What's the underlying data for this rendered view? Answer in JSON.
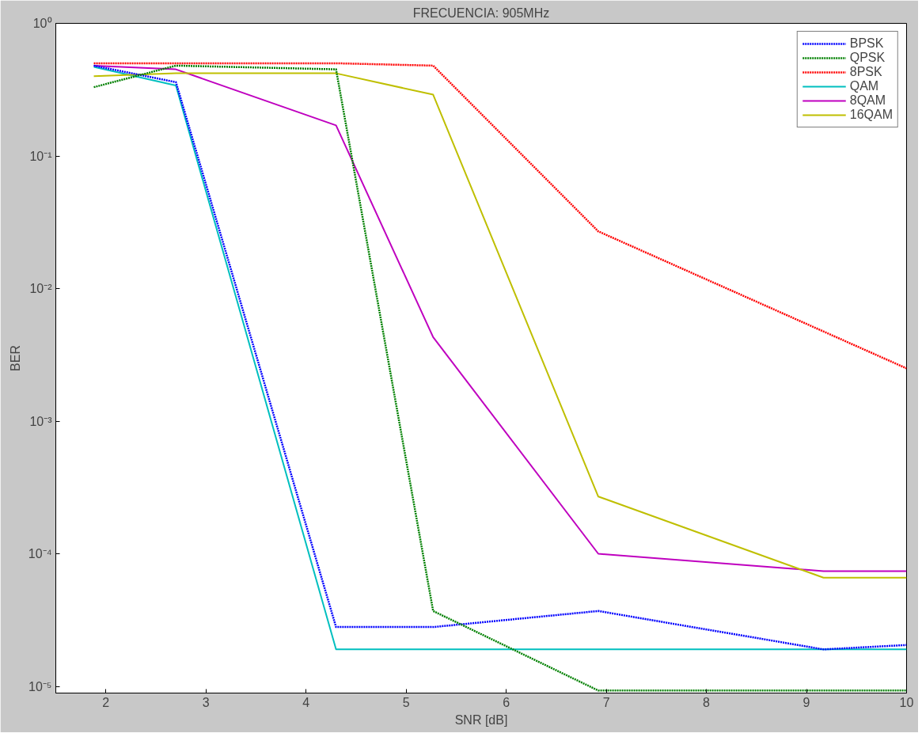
{
  "chart_data": {
    "type": "line",
    "title": "FRECUENCIA: 905MHz",
    "xlabel": "SNR [dB]",
    "ylabel": "BER",
    "log": "y",
    "grid": false,
    "legend": "top right",
    "marker": "none",
    "xlim": [
      1.5,
      10
    ],
    "xticks": [
      2,
      3,
      4,
      5,
      6,
      7,
      8,
      9,
      10
    ],
    "ylim": [
      8.9e-06,
      1
    ],
    "yticks": [
      {
        "value": 1,
        "label": "10⁰"
      },
      {
        "value": 0.1,
        "label": "10⁻¹"
      },
      {
        "value": 0.01,
        "label": "10⁻²"
      },
      {
        "value": 0.001,
        "label": "10⁻³"
      },
      {
        "value": 0.0001,
        "label": "10⁻⁴"
      },
      {
        "value": 1e-05,
        "label": "10⁻⁵"
      }
    ],
    "series": [
      {
        "name": "BPSK",
        "color": "#0000ff",
        "line_style": "dotted",
        "x": [
          1.88,
          2.7,
          4.3,
          5.27,
          6.92,
          9.17,
          10
        ],
        "values": [
          0.48,
          0.36,
          2.8e-05,
          2.8e-05,
          3.7e-05,
          1.9e-05,
          2.05e-05
        ]
      },
      {
        "name": "QPSK",
        "color": "#008000",
        "line_style": "dotted",
        "x": [
          1.88,
          2.7,
          4.3,
          5.27,
          6.92,
          9.17,
          10
        ],
        "values": [
          0.33,
          0.48,
          0.45,
          3.7e-05,
          9.3e-06,
          9.3e-06,
          9.3e-06
        ]
      },
      {
        "name": "8PSK",
        "color": "#ff0000",
        "line_style": "dotted",
        "x": [
          1.88,
          2.7,
          4.3,
          5.27,
          6.92,
          10
        ],
        "values": [
          0.5,
          0.5,
          0.5,
          0.48,
          0.027,
          0.0025
        ]
      },
      {
        "name": "QAM",
        "color": "#00bfbf",
        "line_style": "solid",
        "x": [
          1.88,
          2.7,
          4.3,
          5.27,
          6.92,
          9.17,
          10
        ],
        "values": [
          0.47,
          0.34,
          1.9e-05,
          1.9e-05,
          1.9e-05,
          1.9e-05,
          1.9e-05
        ]
      },
      {
        "name": "8QAM",
        "color": "#bf00bf",
        "line_style": "solid",
        "x": [
          1.88,
          2.7,
          4.3,
          5.27,
          6.92,
          9.17,
          10
        ],
        "values": [
          0.48,
          0.45,
          0.17,
          0.0043,
          0.0001,
          7.4e-05,
          7.4e-05
        ]
      },
      {
        "name": "16QAM",
        "color": "#bfbf00",
        "line_style": "solid",
        "x": [
          1.88,
          2.7,
          4.3,
          5.27,
          6.92,
          9.17,
          10
        ],
        "values": [
          0.4,
          0.42,
          0.42,
          0.29,
          0.00027,
          6.6e-05,
          6.6e-05
        ]
      }
    ]
  }
}
